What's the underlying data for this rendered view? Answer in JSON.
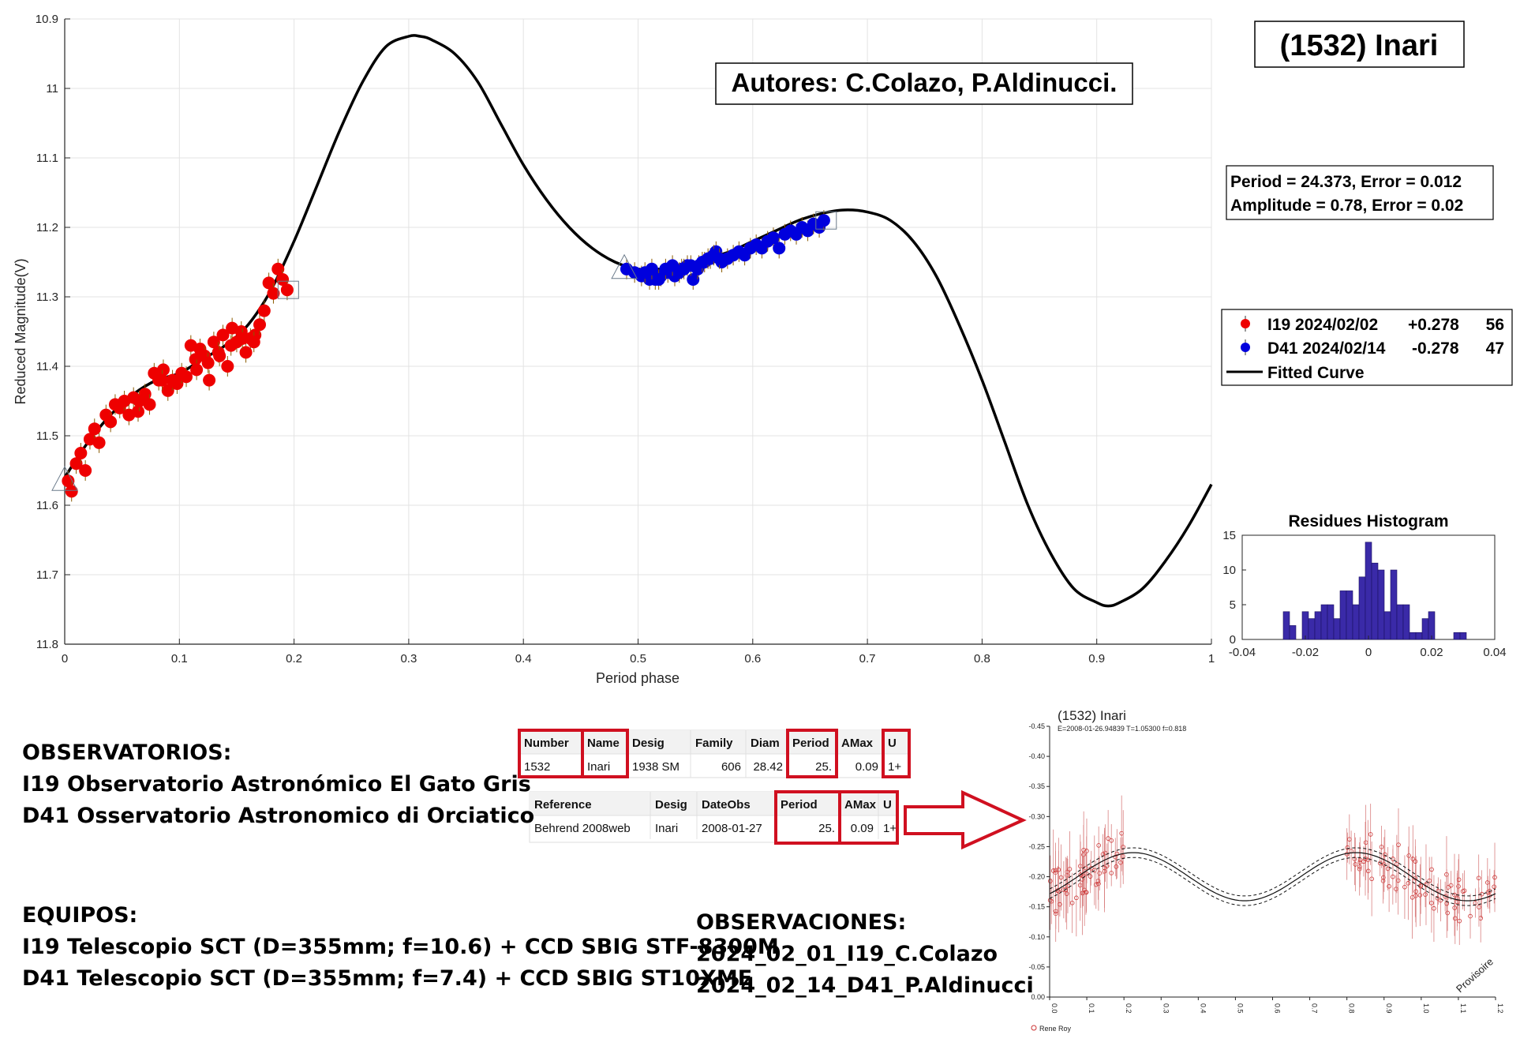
{
  "title": "(1532) Inari",
  "authors": "Autores: C.Colazo, P.Aldinucci.",
  "fit_info": {
    "line1": "Period =  24.373, Error = 0.012",
    "line2": "Amplitude = 0.78, Error = 0.02"
  },
  "colors": {
    "i19": "#ee0000",
    "d41": "#0000dd",
    "curve": "#000000",
    "hist": "#3a2aa8",
    "red_box": "#d01020"
  },
  "legend": [
    {
      "label": "I19 2024/02/02",
      "offset": "+0.278",
      "count": "56",
      "color": "#ee0000"
    },
    {
      "label": "D41 2024/02/14",
      "offset": "-0.278",
      "count": "47",
      "color": "#0000dd"
    },
    {
      "label": "Fitted Curve",
      "offset": "",
      "count": "",
      "color": "#000000"
    }
  ],
  "chart_data": [
    {
      "type": "scatter",
      "xlabel": "Period phase",
      "ylabel": "Reduced Magnitude(V)",
      "xlim": [
        0,
        1
      ],
      "ylim": [
        10.9,
        11.8
      ],
      "y_reversed": true,
      "grid": true,
      "xticks": [
        "0",
        "0.1",
        "0.2",
        "0.3",
        "0.4",
        "0.5",
        "0.6",
        "0.7",
        "0.8",
        "0.9",
        "1"
      ],
      "yticks": [
        "10.9",
        "11",
        "11.1",
        "11.2",
        "11.3",
        "11.4",
        "11.5",
        "11.6",
        "11.7",
        "11.8"
      ],
      "curve": {
        "name": "Fitted Curve",
        "x": [
          0.0,
          0.02,
          0.04,
          0.06,
          0.08,
          0.1,
          0.12,
          0.14,
          0.16,
          0.18,
          0.2,
          0.22,
          0.24,
          0.26,
          0.28,
          0.3,
          0.31,
          0.32,
          0.34,
          0.36,
          0.38,
          0.4,
          0.42,
          0.44,
          0.46,
          0.48,
          0.5,
          0.52,
          0.54,
          0.56,
          0.58,
          0.6,
          0.62,
          0.64,
          0.66,
          0.68,
          0.7,
          0.72,
          0.74,
          0.76,
          0.78,
          0.8,
          0.82,
          0.84,
          0.86,
          0.88,
          0.9,
          0.91,
          0.92,
          0.94,
          0.96,
          0.98,
          1.0
        ],
        "y": [
          11.56,
          11.51,
          11.47,
          11.44,
          11.42,
          11.41,
          11.39,
          11.37,
          11.34,
          11.29,
          11.22,
          11.14,
          11.06,
          10.99,
          10.94,
          10.925,
          10.925,
          10.93,
          10.95,
          10.99,
          11.05,
          11.11,
          11.16,
          11.2,
          11.23,
          11.25,
          11.26,
          11.26,
          11.255,
          11.245,
          11.235,
          11.22,
          11.205,
          11.19,
          11.18,
          11.175,
          11.178,
          11.19,
          11.22,
          11.27,
          11.34,
          11.42,
          11.51,
          11.6,
          11.67,
          11.72,
          11.74,
          11.745,
          11.74,
          11.72,
          11.68,
          11.63,
          11.57
        ]
      },
      "series": [
        {
          "name": "I19 2024/02/02",
          "x": [
            0.003,
            0.006,
            0.01,
            0.014,
            0.018,
            0.022,
            0.026,
            0.03,
            0.036,
            0.04,
            0.044,
            0.048,
            0.052,
            0.056,
            0.06,
            0.064,
            0.07,
            0.074,
            0.078,
            0.082,
            0.086,
            0.09,
            0.094,
            0.098,
            0.102,
            0.106,
            0.11,
            0.114,
            0.118,
            0.122,
            0.126,
            0.13,
            0.134,
            0.138,
            0.142,
            0.146,
            0.15,
            0.154,
            0.158,
            0.162,
            0.166,
            0.17,
            0.174,
            0.178,
            0.182,
            0.186,
            0.19,
            0.194,
            0.135,
            0.145,
            0.155,
            0.165,
            0.125,
            0.115,
            0.085,
            0.065
          ],
          "y": [
            11.565,
            11.58,
            11.54,
            11.525,
            11.55,
            11.505,
            11.49,
            11.51,
            11.47,
            11.48,
            11.455,
            11.46,
            11.45,
            11.47,
            11.445,
            11.465,
            11.44,
            11.455,
            11.41,
            11.42,
            11.405,
            11.435,
            11.42,
            11.425,
            11.41,
            11.415,
            11.37,
            11.39,
            11.375,
            11.385,
            11.42,
            11.365,
            11.38,
            11.355,
            11.4,
            11.345,
            11.365,
            11.35,
            11.38,
            11.36,
            11.355,
            11.34,
            11.32,
            11.28,
            11.295,
            11.26,
            11.275,
            11.29,
            11.385,
            11.37,
            11.36,
            11.365,
            11.395,
            11.405,
            11.42,
            11.45
          ]
        },
        {
          "name": "D41 2024/02/14",
          "x": [
            0.49,
            0.497,
            0.503,
            0.51,
            0.515,
            0.52,
            0.526,
            0.532,
            0.538,
            0.543,
            0.548,
            0.553,
            0.558,
            0.563,
            0.568,
            0.573,
            0.578,
            0.583,
            0.588,
            0.593,
            0.598,
            0.603,
            0.608,
            0.613,
            0.618,
            0.623,
            0.628,
            0.633,
            0.638,
            0.643,
            0.648,
            0.653,
            0.658,
            0.662,
            0.506,
            0.512,
            0.518,
            0.524,
            0.53,
            0.536,
            0.54,
            0.546,
            0.552,
            0.556,
            0.561,
            0.566,
            0.571
          ],
          "y": [
            11.26,
            11.265,
            11.27,
            11.275,
            11.275,
            11.27,
            11.265,
            11.27,
            11.26,
            11.255,
            11.275,
            11.255,
            11.25,
            11.245,
            11.235,
            11.25,
            11.245,
            11.24,
            11.235,
            11.24,
            11.23,
            11.225,
            11.23,
            11.22,
            11.215,
            11.23,
            11.21,
            11.205,
            11.21,
            11.2,
            11.205,
            11.195,
            11.2,
            11.19,
            11.265,
            11.26,
            11.275,
            11.26,
            11.255,
            11.265,
            11.26,
            11.255,
            11.26,
            11.25,
            11.245,
            11.24,
            11.245
          ]
        }
      ],
      "markers": [
        {
          "shape": "triangle",
          "x": 0.0,
          "y": 11.565
        },
        {
          "shape": "square",
          "x": 0.195,
          "y": 11.29
        },
        {
          "shape": "triangle",
          "x": 0.488,
          "y": 11.26
        },
        {
          "shape": "square",
          "x": 0.664,
          "y": 11.19
        }
      ]
    },
    {
      "type": "bar",
      "title": "Residues Histogram",
      "xlim": [
        -0.04,
        0.04
      ],
      "ylim": [
        0,
        15
      ],
      "xticks": [
        "-0.04",
        "-0.02",
        "0",
        "0.02",
        "0.04"
      ],
      "yticks": [
        "0",
        "5",
        "10",
        "15"
      ],
      "bin_width": 0.002,
      "bin_starts": [
        -0.027,
        -0.025,
        -0.023,
        -0.021,
        -0.019,
        -0.017,
        -0.015,
        -0.013,
        -0.011,
        -0.009,
        -0.007,
        -0.005,
        -0.003,
        -0.001,
        0.001,
        0.003,
        0.005,
        0.007,
        0.009,
        0.011,
        0.013,
        0.015,
        0.017,
        0.019,
        0.021,
        0.023,
        0.025,
        0.027,
        0.029
      ],
      "values": [
        4,
        2,
        0,
        4,
        3,
        4,
        5,
        5,
        3,
        7,
        7,
        5,
        9,
        14,
        11,
        10,
        4,
        10,
        5,
        5,
        1,
        1,
        3,
        4,
        0,
        0,
        0,
        1,
        1
      ]
    },
    {
      "type": "scatter",
      "title": "(1532) Inari",
      "subtitle": "E=2008-01-26.94839    T=1.05300    f=0.818",
      "xlim": [
        0.0,
        1.2
      ],
      "ylim": [
        0.0,
        0.45
      ],
      "y_reversed": true,
      "xticks": [
        "0.0",
        "0.1",
        "0.2",
        "0.3",
        "0.4",
        "0.5",
        "0.6",
        "0.7",
        "0.8",
        "0.9",
        "1.0",
        "1.1",
        "1.2"
      ],
      "yticks": [
        "0.00",
        "-0.05",
        "-0.10",
        "-0.15",
        "-0.20",
        "-0.25",
        "-0.30",
        "-0.35",
        "-0.40",
        "-0.45"
      ],
      "series_name": "Rene Roy",
      "watermark": "Provisoire",
      "curve_mean": {
        "x": [
          0.0,
          0.15,
          0.3,
          0.45,
          0.6,
          0.75,
          0.9,
          1.05,
          1.2
        ],
        "y": [
          0.2,
          0.16,
          0.2,
          0.24,
          0.2,
          0.16,
          0.2,
          0.24,
          0.2
        ]
      }
    }
  ],
  "ref_table_1": {
    "headers": [
      "Number",
      "Name",
      "Desig",
      "Family",
      "Diam",
      "Period",
      "AMax",
      "U"
    ],
    "row": [
      "1532",
      "Inari",
      "1938 SM",
      "606",
      "28.42",
      "25.",
      "0.09",
      "1+"
    ]
  },
  "ref_table_2": {
    "headers": [
      "Reference",
      "Desig",
      "DateObs",
      "Period",
      "AMax",
      "U"
    ],
    "row": [
      "Behrend 2008web",
      "Inari",
      "2008-01-27",
      "25.",
      "0.09",
      "1+"
    ]
  },
  "observatorios": {
    "heading": "OBSERVATORIOS:",
    "lines": [
      "I19 Observatorio Astronómico El Gato Gris",
      "D41 Osservatorio Astronomico di Orciatico"
    ]
  },
  "equipos": {
    "heading": "EQUIPOS:",
    "lines": [
      "I19 Telescopio SCT (D=355mm; f=10.6) + CCD SBIG STF-8300M",
      "D41 Telescopio SCT (D=355mm; f=7.4) + CCD SBIG ST10XME"
    ]
  },
  "observaciones": {
    "heading": "OBSERVACIONES:",
    "lines": [
      "2024_02_01_I19_C.Colazo",
      "2024_02_14_D41_P.Aldinucci"
    ]
  }
}
